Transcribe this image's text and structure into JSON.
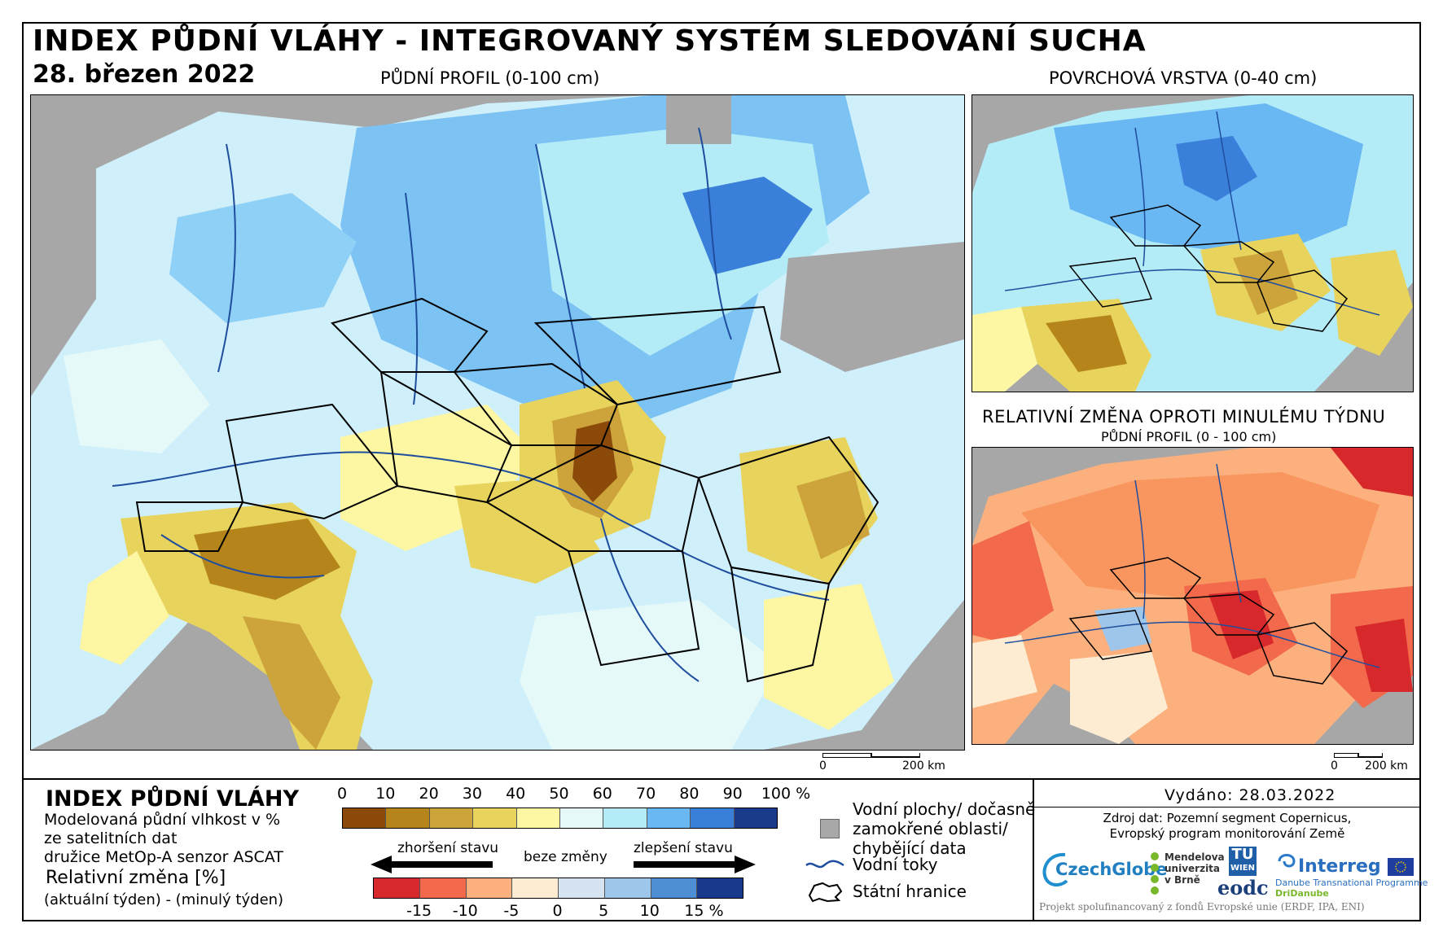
{
  "header": {
    "title": "INDEX PŮDNÍ VLÁHY - INTEGROVANÝ SYSTÉM SLEDOVÁNÍ SUCHA",
    "date": "28. březen 2022"
  },
  "maps": {
    "main_label": "PŮDNÍ PROFIL (0-100 cm)",
    "surface_label": "POVRCHOVÁ VRSTVA (0-40 cm)",
    "change_label": "RELATIVNÍ ZMĚNA OPROTI MINULÉMU TÝDNU",
    "change_sublabel": "PŮDNÍ PROFIL (0 - 100 cm)"
  },
  "scalebars": {
    "zero": "0",
    "main": "200 km",
    "change": "200 km"
  },
  "legend": {
    "title": "INDEX PŮDNÍ VLÁHY",
    "desc_1": "Modelovaná půdní vlhkost v %",
    "desc_2": "ze satelitních dat",
    "desc_3": "družice MetOp-A senzor ASCAT",
    "rel_title": "Relativní změna [%]",
    "rel_sub": "(aktuální týden) - (minulý týden)",
    "index_ticks": [
      "0",
      "10",
      "20",
      "30",
      "40",
      "50",
      "60",
      "70",
      "80",
      "90",
      "100 %"
    ],
    "index_colors": [
      "#8b4a0a",
      "#b5851c",
      "#cda43c",
      "#e8d35c",
      "#fdf7a3",
      "#e5f9f8",
      "#b3ecf6",
      "#6ab8f3",
      "#3a7fd9",
      "#1a3a8c"
    ],
    "change_colors": [
      "#d7282c",
      "#f26a4b",
      "#fbb07d",
      "#fdebd2",
      "#d6e4f2",
      "#9ec6ea",
      "#4d8ed4",
      "#173a8c"
    ],
    "change_ticks": [
      "-15",
      "-10",
      "-5",
      "0",
      "5",
      "10",
      "15 %"
    ],
    "worse": "zhoršení stavu",
    "nochange": "beze změny",
    "better": "zlepšení stavu",
    "water_1": "Vodní plochy/ dočasně",
    "water_2": "zamokřené oblasti/",
    "water_3": "chybějící data",
    "rivers": "Vodní toky",
    "borders": "Státní hranice"
  },
  "credits": {
    "issued": "Vydáno: 28.03.2022",
    "source_1": "Zdroj dat: Pozemní segment Copernicus,",
    "source_2": "Evropský program monitorování Země",
    "czechglobe": "CzechGlobe",
    "mendel_1": "Mendelova",
    "mendel_2": "univerzita",
    "mendel_3": "v Brně",
    "tu": "TU",
    "wien": "WIEN",
    "eodc": "eodc",
    "interreg": "Interreg",
    "dtp": "Danube Transnational Programme",
    "dridanube": "DriDanube",
    "funding": "Projekt spolufinancovaný z fondů Evropské unie (ERDF, IPA, ENI)"
  },
  "colors": {
    "nodata": "#a7a7a7",
    "river": "#1f4e9e",
    "border": "#000000"
  }
}
